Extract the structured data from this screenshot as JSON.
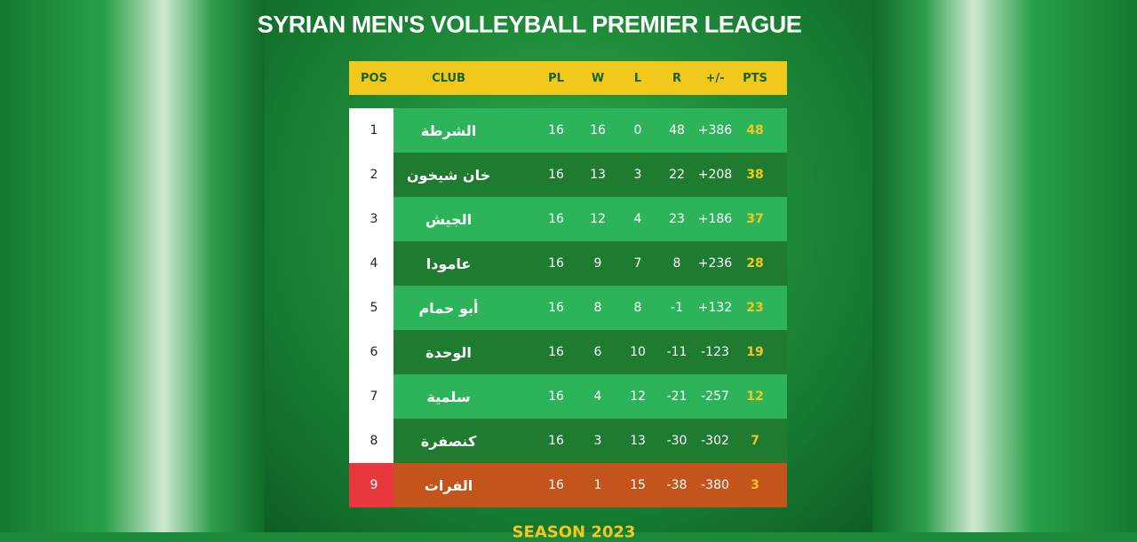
{
  "title": "SYRIAN MEN'S VOLLEYBALL PREMIER LEAGUE",
  "table": {
    "header": [
      "POS",
      "CLUB",
      "PL",
      "W",
      "L",
      "R",
      "+/-",
      "PTS"
    ],
    "rows": [
      [
        "1",
        "الشرطة",
        "16",
        "16",
        "0",
        "48",
        "+386",
        "48"
      ],
      [
        "2",
        "خان شيخون",
        "16",
        "13",
        "3",
        "22",
        "+208",
        "38"
      ],
      [
        "3",
        "الجيش",
        "16",
        "12",
        "4",
        "23",
        "+186",
        "37"
      ],
      [
        "4",
        "عامودا",
        "16",
        "9",
        "7",
        "8",
        "+236",
        "28"
      ],
      [
        "5",
        "أبو حمام",
        "16",
        "8",
        "8",
        "-1",
        "+132",
        "23"
      ],
      [
        "6",
        "الوحدة",
        "16",
        "6",
        "10",
        "-11",
        "-123",
        "19"
      ],
      [
        "7",
        "سلمية",
        "16",
        "4",
        "12",
        "-21",
        "-257",
        "12"
      ],
      [
        "8",
        "كنصفرة",
        "16",
        "3",
        "13",
        "-30",
        "-302",
        "7"
      ],
      [
        "9",
        "الفرات",
        "16",
        "1",
        "15",
        "-38",
        "-380",
        "3"
      ]
    ]
  },
  "footer": "SEASON 2023"
}
